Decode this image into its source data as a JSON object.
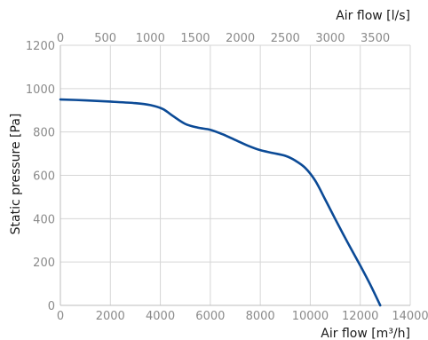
{
  "chart_data": {
    "type": "line",
    "xlabel": "Air flow [m³/h]",
    "x2label": "Air flow [l/s]",
    "ylabel": "Static pressure [Pa]",
    "xlim": [
      0,
      14000
    ],
    "x2lim": [
      0,
      3889
    ],
    "ylim": [
      0,
      1200
    ],
    "x_ticks": [
      0,
      2000,
      4000,
      6000,
      8000,
      10000,
      12000,
      14000
    ],
    "x2_ticks": [
      0,
      500,
      1000,
      1500,
      2000,
      2500,
      3000,
      3500
    ],
    "y_ticks": [
      0,
      200,
      400,
      600,
      800,
      1000,
      1200
    ],
    "grid": true,
    "colors": {
      "line": "#0b4a96",
      "grid": "#d6d6d6",
      "tick_text": "#8a8a8a"
    },
    "series": [
      {
        "x": [
          0,
          1000,
          2000,
          3000,
          3600,
          4100,
          4500,
          5000,
          5500,
          6000,
          6500,
          7000,
          7500,
          8000,
          8500,
          9000,
          9400,
          9800,
          10200,
          10600,
          11000,
          11500,
          12000,
          12400,
          12800
        ],
        "y": [
          950,
          946,
          940,
          933,
          924,
          906,
          874,
          837,
          820,
          810,
          789,
          763,
          737,
          716,
          703,
          690,
          668,
          634,
          575,
          488,
          398,
          289,
          184,
          96,
          0
        ]
      }
    ]
  }
}
